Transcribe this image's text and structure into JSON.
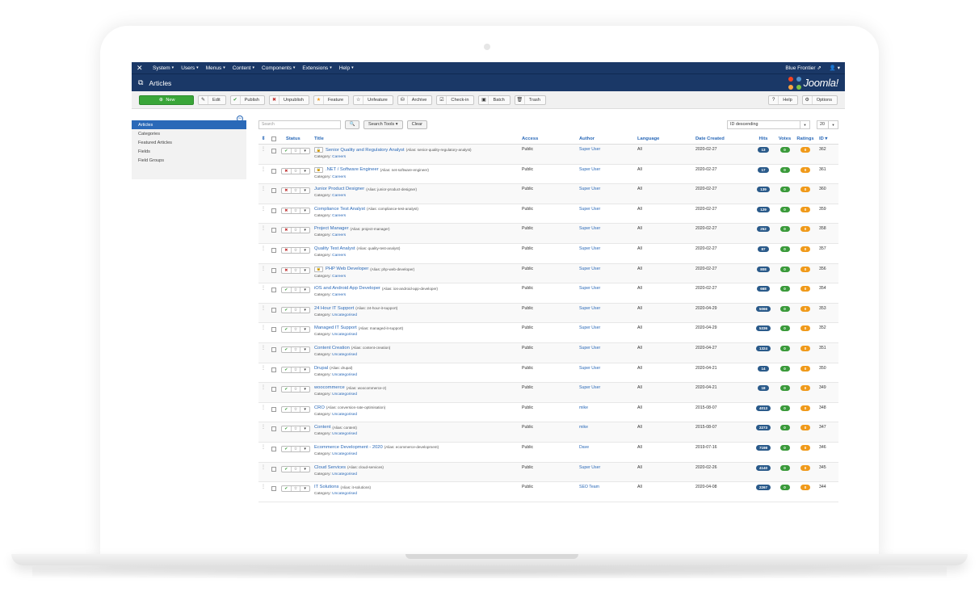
{
  "topbar": {
    "menu": [
      {
        "label": "System"
      },
      {
        "label": "Users"
      },
      {
        "label": "Menus"
      },
      {
        "label": "Content"
      },
      {
        "label": "Components"
      },
      {
        "label": "Extensions"
      },
      {
        "label": "Help"
      }
    ],
    "site_name": "Blue Frontier",
    "user_icon": "user-icon"
  },
  "header": {
    "title": "Articles",
    "brand": "Joomla!"
  },
  "toolbar": {
    "buttons": [
      {
        "label": "New",
        "icon": "plus-icon"
      },
      {
        "label": "Edit",
        "icon": "edit-icon"
      },
      {
        "label": "Publish",
        "icon": "check-icon"
      },
      {
        "label": "Unpublish",
        "icon": "times-icon"
      },
      {
        "label": "Feature",
        "icon": "star-icon"
      },
      {
        "label": "Unfeature",
        "icon": "star-empty-icon"
      },
      {
        "label": "Archive",
        "icon": "archive-icon"
      },
      {
        "label": "Check-in",
        "icon": "checkin-icon"
      },
      {
        "label": "Batch",
        "icon": "batch-icon"
      },
      {
        "label": "Trash",
        "icon": "trash-icon"
      }
    ],
    "right_buttons": [
      {
        "label": "Help",
        "icon": "question-icon"
      },
      {
        "label": "Options",
        "icon": "gear-icon"
      }
    ]
  },
  "sidebar": {
    "items": [
      {
        "label": "Articles",
        "active": true
      },
      {
        "label": "Categories"
      },
      {
        "label": "Featured Articles"
      },
      {
        "label": "Fields"
      },
      {
        "label": "Field Groups"
      }
    ]
  },
  "filters": {
    "search_placeholder": "Search",
    "search_tools_label": "Search Tools ▾",
    "clear_label": "Clear",
    "sort_value": "ID descending",
    "limit_value": "20"
  },
  "table": {
    "headers": {
      "order": "⇕",
      "status": "Status",
      "title": "Title",
      "access": "Access",
      "author": "Author",
      "language": "Language",
      "date": "Date Created",
      "hits": "Hits",
      "votes": "Votes",
      "ratings": "Ratings",
      "id": "ID ▾"
    },
    "rows": [
      {
        "published": true,
        "locked": true,
        "title": "Senior Quality and Regulatory Analyst",
        "alias": "(Alias: senior-quality-regulatory-analyst)",
        "category": "Careers",
        "access": "Public",
        "author": "Super User",
        "language": "All",
        "date": "2020-02-27",
        "hits": "13",
        "votes": "0",
        "ratings": "0",
        "id": "362"
      },
      {
        "published": false,
        "locked": true,
        "title": ".NET / Software Engineer",
        "alias": "(Alias: net-software-engineer)",
        "category": "Careers",
        "access": "Public",
        "author": "Super User",
        "language": "All",
        "date": "2020-02-27",
        "hits": "17",
        "votes": "0",
        "ratings": "0",
        "id": "361"
      },
      {
        "published": false,
        "locked": false,
        "title": "Junior Product Designer",
        "alias": "(Alias: junior-product-designer)",
        "category": "Careers",
        "access": "Public",
        "author": "Super User",
        "language": "All",
        "date": "2020-02-27",
        "hits": "139",
        "votes": "0",
        "ratings": "0",
        "id": "360"
      },
      {
        "published": false,
        "locked": false,
        "title": "Compliance Test Analyst",
        "alias": "(Alias: compliance-test-analyst)",
        "category": "Careers",
        "access": "Public",
        "author": "Super User",
        "language": "All",
        "date": "2020-02-27",
        "hits": "129",
        "votes": "0",
        "ratings": "0",
        "id": "359"
      },
      {
        "published": false,
        "locked": false,
        "title": "Project Manager",
        "alias": "(Alias: project-manager)",
        "category": "Careers",
        "access": "Public",
        "author": "Super User",
        "language": "All",
        "date": "2020-02-27",
        "hits": "252",
        "votes": "0",
        "ratings": "0",
        "id": "358"
      },
      {
        "published": false,
        "locked": false,
        "title": "Quality Test Analyst",
        "alias": "(Alias: quality-test-analyst)",
        "category": "Careers",
        "access": "Public",
        "author": "Super User",
        "language": "All",
        "date": "2020-02-27",
        "hits": "87",
        "votes": "0",
        "ratings": "0",
        "id": "357"
      },
      {
        "published": false,
        "locked": true,
        "title": "PHP Web Developer",
        "alias": "(Alias: php-web-developer)",
        "category": "Careers",
        "access": "Public",
        "author": "Super User",
        "language": "All",
        "date": "2020-02-27",
        "hits": "808",
        "votes": "0",
        "ratings": "0",
        "id": "356"
      },
      {
        "published": true,
        "locked": false,
        "title": "iOS and Android App Developer",
        "alias": "(Alias: ios-android-app-developer)",
        "category": "Careers",
        "access": "Public",
        "author": "Super User",
        "language": "All",
        "date": "2020-02-27",
        "hits": "668",
        "votes": "0",
        "ratings": "0",
        "id": "354"
      },
      {
        "published": true,
        "locked": false,
        "title": "24 Hour IT Support",
        "alias": "(Alias: 24-hour-it-support)",
        "category": "Uncategorised",
        "access": "Public",
        "author": "Super User",
        "language": "All",
        "date": "2020-04-29",
        "hits": "5066",
        "votes": "0",
        "ratings": "0",
        "id": "353"
      },
      {
        "published": true,
        "locked": false,
        "title": "Managed IT Support",
        "alias": "(Alias: managed-it-support)",
        "category": "Uncategorised",
        "access": "Public",
        "author": "Super User",
        "language": "All",
        "date": "2020-04-29",
        "hits": "5336",
        "votes": "0",
        "ratings": "0",
        "id": "352"
      },
      {
        "published": true,
        "locked": false,
        "title": "Content Creation",
        "alias": "(Alias: content-creation)",
        "category": "Uncategorised",
        "access": "Public",
        "author": "Super User",
        "language": "All",
        "date": "2020-04-27",
        "hits": "1324",
        "votes": "0",
        "ratings": "0",
        "id": "351"
      },
      {
        "published": true,
        "locked": false,
        "title": "Drupal",
        "alias": "(Alias: drupal)",
        "category": "Uncategorised",
        "access": "Public",
        "author": "Super User",
        "language": "All",
        "date": "2020-04-21",
        "hits": "14",
        "votes": "0",
        "ratings": "0",
        "id": "350"
      },
      {
        "published": true,
        "locked": false,
        "title": "woocommerce",
        "alias": "(Alias: woocommerce-2)",
        "category": "Uncategorised",
        "access": "Public",
        "author": "Super User",
        "language": "All",
        "date": "2020-04-21",
        "hits": "18",
        "votes": "0",
        "ratings": "0",
        "id": "349"
      },
      {
        "published": true,
        "locked": false,
        "title": "CRO",
        "alias": "(Alias: conversion-rate-optimisation)",
        "category": "Uncategorised",
        "access": "Public",
        "author": "mike",
        "language": "All",
        "date": "2015-08-07",
        "hits": "4013",
        "votes": "0",
        "ratings": "0",
        "id": "348"
      },
      {
        "published": true,
        "locked": false,
        "title": "Content",
        "alias": "(Alias: content)",
        "category": "Uncategorised",
        "access": "Public",
        "author": "mike",
        "language": "All",
        "date": "2015-08-07",
        "hits": "2273",
        "votes": "0",
        "ratings": "0",
        "id": "347"
      },
      {
        "published": true,
        "locked": false,
        "title": "Ecommerce Development - 2020",
        "alias": "(Alias: ecommerce-development)",
        "category": "Uncategorised",
        "access": "Public",
        "author": "Dave",
        "language": "All",
        "date": "2019-07-16",
        "hits": "7198",
        "votes": "0",
        "ratings": "0",
        "id": "346"
      },
      {
        "published": true,
        "locked": false,
        "title": "Cloud Services",
        "alias": "(Alias: cloud-services)",
        "category": "Uncategorised",
        "access": "Public",
        "author": "Super User",
        "language": "All",
        "date": "2020-02-26",
        "hits": "4140",
        "votes": "0",
        "ratings": "0",
        "id": "345"
      },
      {
        "published": true,
        "locked": false,
        "title": "IT Solutions",
        "alias": "(Alias: it-solutions)",
        "category": "Uncategorised",
        "access": "Public",
        "author": "SEO Team",
        "language": "All",
        "date": "2020-04-08",
        "hits": "2267",
        "votes": "0",
        "ratings": "0",
        "id": "344"
      }
    ]
  },
  "colors": {
    "navbar": "#1a3867",
    "link": "#2a69b8",
    "new_button": "#3aa639",
    "hits_badge": "#2a5a8a",
    "votes_badge": "#3a9a3a",
    "ratings_badge": "#f09a1a"
  }
}
